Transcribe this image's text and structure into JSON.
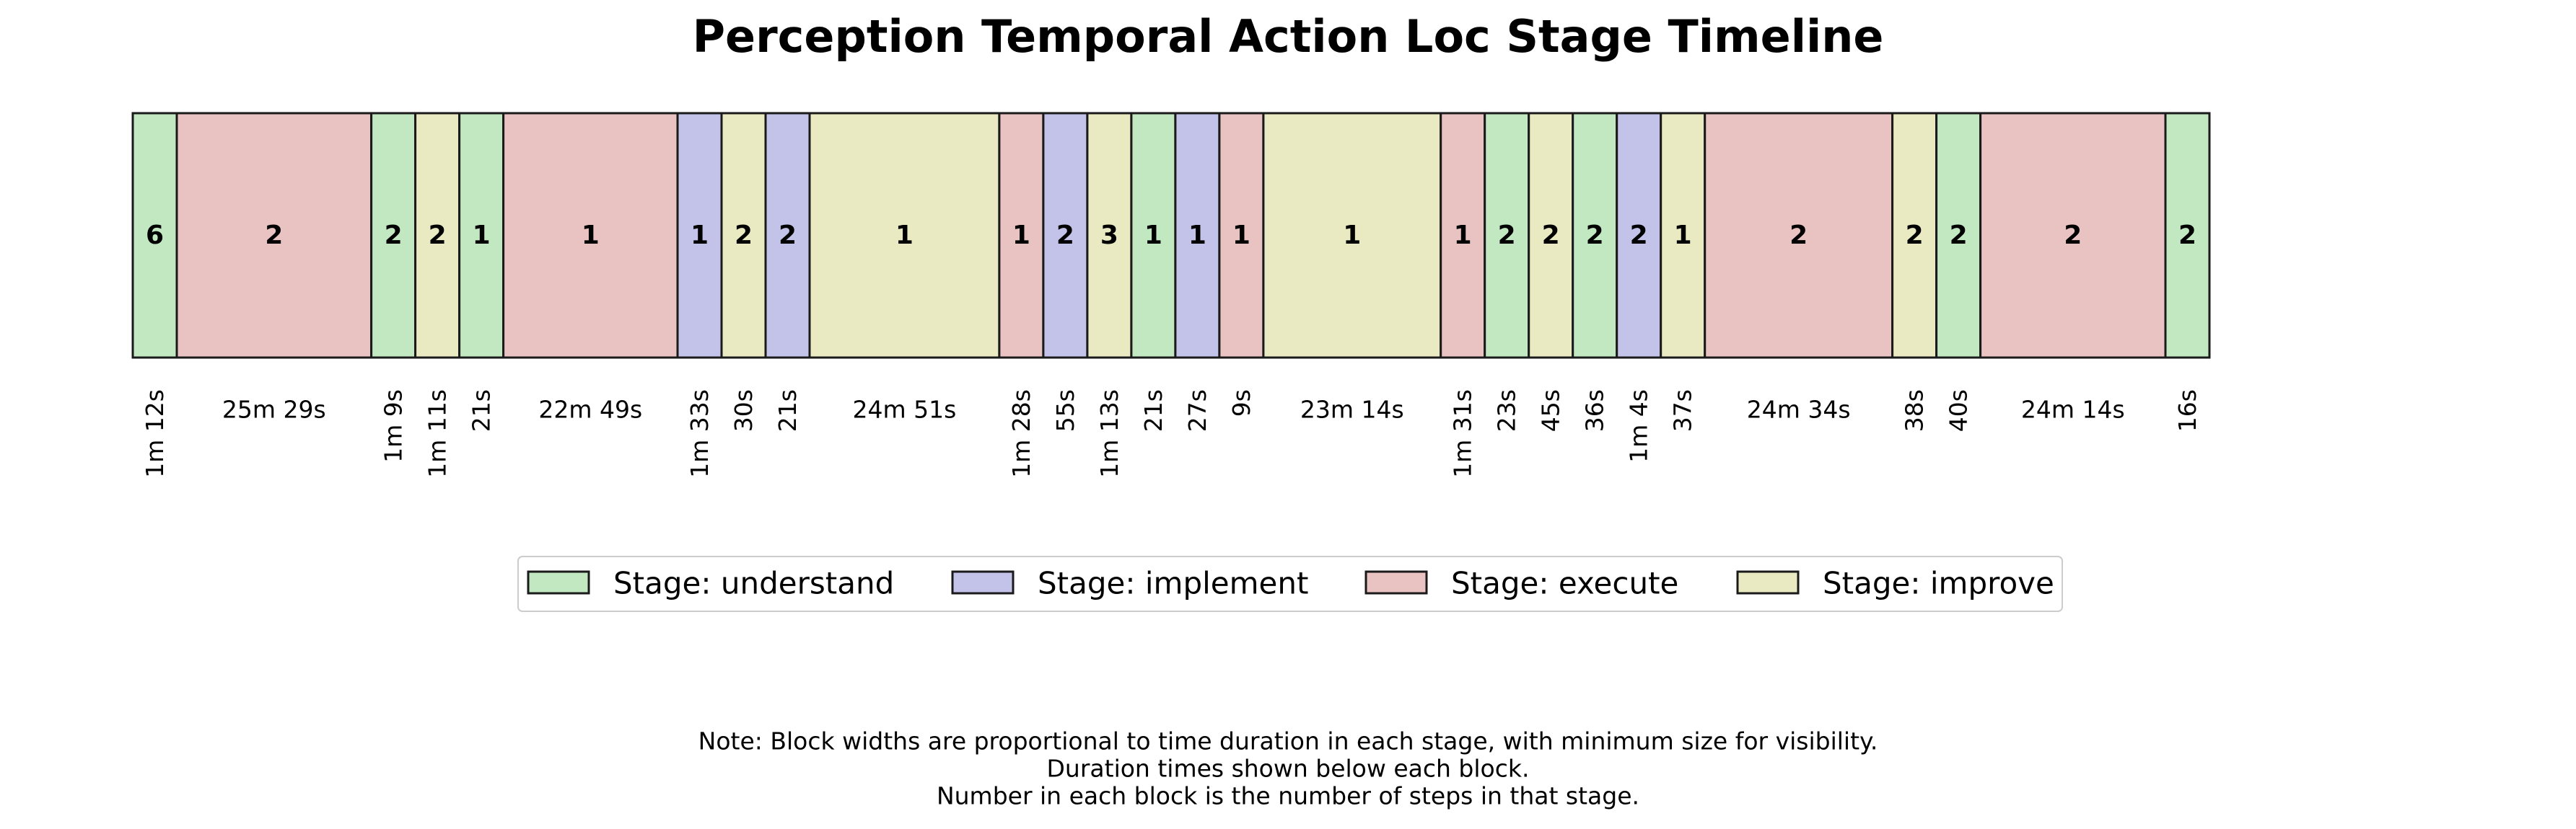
{
  "chart_data": {
    "type": "timeline",
    "title": "Perception Temporal Action Loc Stage Timeline",
    "stage_colors": {
      "understand": "#c2e8c2",
      "implement": "#c3c3ea",
      "execute": "#e9c2c2",
      "improve": "#e9eac2"
    },
    "blocks": [
      {
        "stage": "understand",
        "steps": "6",
        "duration": "1m 12s",
        "seconds": 72
      },
      {
        "stage": "execute",
        "steps": "2",
        "duration": "25m 29s",
        "seconds": 1529
      },
      {
        "stage": "understand",
        "steps": "2",
        "duration": "1m 9s",
        "seconds": 69
      },
      {
        "stage": "improve",
        "steps": "2",
        "duration": "1m 11s",
        "seconds": 71
      },
      {
        "stage": "understand",
        "steps": "1",
        "duration": "21s",
        "seconds": 21
      },
      {
        "stage": "execute",
        "steps": "1",
        "duration": "22m 49s",
        "seconds": 1369
      },
      {
        "stage": "implement",
        "steps": "1",
        "duration": "1m 33s",
        "seconds": 93
      },
      {
        "stage": "improve",
        "steps": "2",
        "duration": "30s",
        "seconds": 30
      },
      {
        "stage": "implement",
        "steps": "2",
        "duration": "21s",
        "seconds": 21
      },
      {
        "stage": "improve",
        "steps": "1",
        "duration": "24m 51s",
        "seconds": 1491
      },
      {
        "stage": "execute",
        "steps": "1",
        "duration": "1m 28s",
        "seconds": 88
      },
      {
        "stage": "implement",
        "steps": "2",
        "duration": "55s",
        "seconds": 55
      },
      {
        "stage": "improve",
        "steps": "3",
        "duration": "1m 13s",
        "seconds": 73
      },
      {
        "stage": "understand",
        "steps": "1",
        "duration": "21s",
        "seconds": 21
      },
      {
        "stage": "implement",
        "steps": "1",
        "duration": "27s",
        "seconds": 27
      },
      {
        "stage": "execute",
        "steps": "1",
        "duration": "9s",
        "seconds": 9
      },
      {
        "stage": "improve",
        "steps": "1",
        "duration": "23m 14s",
        "seconds": 1394
      },
      {
        "stage": "execute",
        "steps": "1",
        "duration": "1m 31s",
        "seconds": 91
      },
      {
        "stage": "understand",
        "steps": "2",
        "duration": "23s",
        "seconds": 23
      },
      {
        "stage": "improve",
        "steps": "2",
        "duration": "45s",
        "seconds": 45
      },
      {
        "stage": "understand",
        "steps": "2",
        "duration": "36s",
        "seconds": 36
      },
      {
        "stage": "implement",
        "steps": "2",
        "duration": "1m 4s",
        "seconds": 64
      },
      {
        "stage": "improve",
        "steps": "1",
        "duration": "37s",
        "seconds": 37
      },
      {
        "stage": "execute",
        "steps": "2",
        "duration": "24m 34s",
        "seconds": 1474
      },
      {
        "stage": "improve",
        "steps": "2",
        "duration": "38s",
        "seconds": 38
      },
      {
        "stage": "understand",
        "steps": "2",
        "duration": "40s",
        "seconds": 40
      },
      {
        "stage": "execute",
        "steps": "2",
        "duration": "24m 14s",
        "seconds": 1454
      },
      {
        "stage": "understand",
        "steps": "2",
        "duration": "16s",
        "seconds": 16
      }
    ],
    "legend": {
      "placement": "bottom-center",
      "entries": [
        {
          "stage": "understand",
          "label": "Stage: understand"
        },
        {
          "stage": "implement",
          "label": "Stage: implement"
        },
        {
          "stage": "execute",
          "label": "Stage: execute"
        },
        {
          "stage": "improve",
          "label": "Stage: improve"
        }
      ]
    },
    "notes": [
      "Note: Block widths are proportional to time duration in each stage, with minimum size for visibility.",
      "Duration times shown below each block.",
      "Number in each block is the number of steps in that stage."
    ]
  }
}
